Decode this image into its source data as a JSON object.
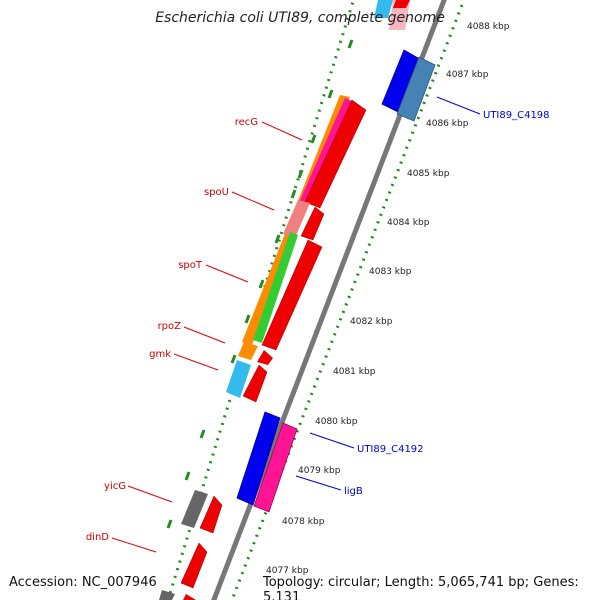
{
  "title": "Escherichia coli UTI89, complete genome",
  "footer": {
    "accession": "Accession: NC_007946",
    "topology": "Topology: circular; Length: 5,065,741 bp; Genes: 5,131"
  },
  "colors": {
    "red_label": "#cc0000",
    "blue_label": "#0000cc",
    "tick_green": "#228b22",
    "backbone": "#808080"
  },
  "scale_labels": [
    "4088 kbp",
    "4087 kbp",
    "4086 kbp",
    "4085 kbp",
    "4084 kbp",
    "4083 kbp",
    "4082 kbp",
    "4081 kbp",
    "4080 kbp",
    "4079 kbp",
    "4078 kbp",
    "4077 kbp"
  ],
  "gene_labels_left": [
    "recG",
    "spoU",
    "spoT",
    "rpoZ",
    "gmk",
    "yicG",
    "dinD"
  ],
  "gene_labels_right": [
    "UTI89_C4198",
    "UTI89_C4192",
    "ligB"
  ]
}
